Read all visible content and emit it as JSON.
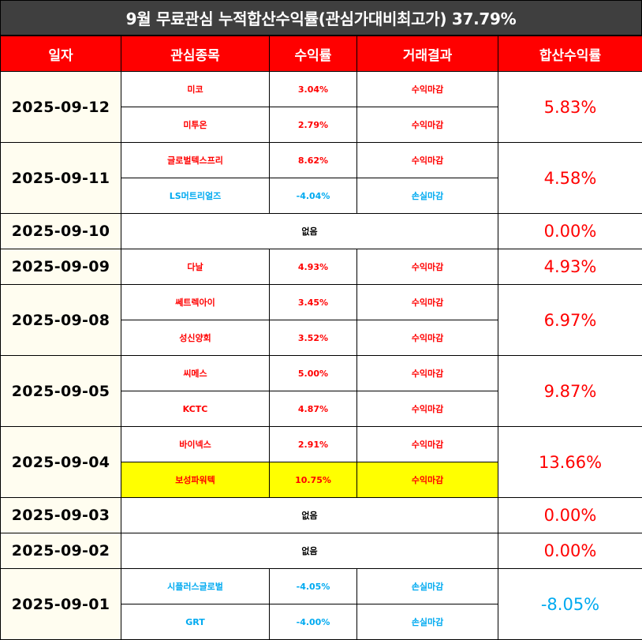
{
  "title": "9월 무료관심 누적합산수익률(관심가대비최고가) 37.79%",
  "headers": [
    "일자",
    "관심종목",
    "수익률",
    "거래결과",
    "합산수익률"
  ],
  "colors": {
    "header_bg": "#ff0000",
    "title_bg": "#3f3f3f",
    "profit": "#ff0000",
    "loss": "#00aaf0",
    "highlight": "#ffff00"
  },
  "days": [
    {
      "date": "2025-09-12",
      "total": "5.83%",
      "total_color": "red",
      "items": [
        {
          "name": "미코",
          "rate": "3.04%",
          "result": "수익마감",
          "color": "red"
        },
        {
          "name": "미투온",
          "rate": "2.79%",
          "result": "수익마감",
          "color": "red"
        }
      ]
    },
    {
      "date": "2025-09-11",
      "total": "4.58%",
      "total_color": "red",
      "items": [
        {
          "name": "글로벌텍스프리",
          "rate": "8.62%",
          "result": "수익마감",
          "color": "red"
        },
        {
          "name": "LS머트리얼즈",
          "rate": "-4.04%",
          "result": "손실마감",
          "color": "blue"
        }
      ]
    },
    {
      "date": "2025-09-10",
      "total": "0.00%",
      "total_color": "red",
      "none": "없음"
    },
    {
      "date": "2025-09-09",
      "total": "4.93%",
      "total_color": "red",
      "items": [
        {
          "name": "다날",
          "rate": "4.93%",
          "result": "수익마감",
          "color": "red"
        }
      ]
    },
    {
      "date": "2025-09-08",
      "total": "6.97%",
      "total_color": "red",
      "items": [
        {
          "name": "쎄트렉아이",
          "rate": "3.45%",
          "result": "수익마감",
          "color": "red"
        },
        {
          "name": "성신양회",
          "rate": "3.52%",
          "result": "수익마감",
          "color": "red"
        }
      ]
    },
    {
      "date": "2025-09-05",
      "total": "9.87%",
      "total_color": "red",
      "items": [
        {
          "name": "씨메스",
          "rate": "5.00%",
          "result": "수익마감",
          "color": "red"
        },
        {
          "name": "KCTC",
          "rate": "4.87%",
          "result": "수익마감",
          "color": "red"
        }
      ]
    },
    {
      "date": "2025-09-04",
      "total": "13.66%",
      "total_color": "red",
      "items": [
        {
          "name": "바이넥스",
          "rate": "2.91%",
          "result": "수익마감",
          "color": "red"
        },
        {
          "name": "보성파워텍",
          "rate": "10.75%",
          "result": "수익마감",
          "color": "red",
          "highlight": true
        }
      ]
    },
    {
      "date": "2025-09-03",
      "total": "0.00%",
      "total_color": "red",
      "none": "없음"
    },
    {
      "date": "2025-09-02",
      "total": "0.00%",
      "total_color": "red",
      "none": "없음"
    },
    {
      "date": "2025-09-01",
      "total": "-8.05%",
      "total_color": "blue",
      "items": [
        {
          "name": "시플러스글로벌",
          "rate": "-4.05%",
          "result": "손실마감",
          "color": "blue"
        },
        {
          "name": "GRT",
          "rate": "-4.00%",
          "result": "손실마감",
          "color": "blue"
        }
      ]
    }
  ]
}
